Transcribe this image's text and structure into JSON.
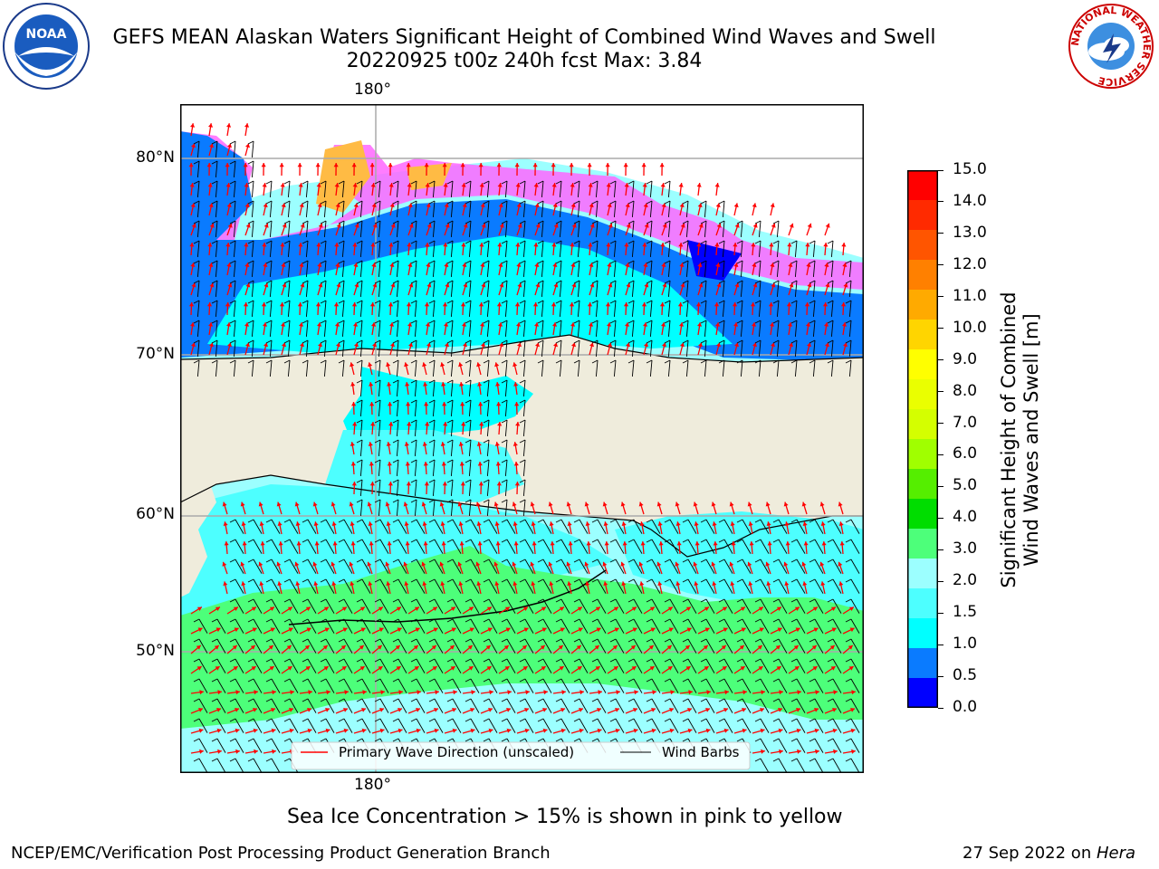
{
  "title": {
    "line1": "GEFS MEAN Alaskan Waters Significant Height of Combined Wind Waves and Swell",
    "line2": "20220925 t00z 240h fcst   Max: 3.84"
  },
  "map": {
    "lon_label_top": "180°",
    "lon_label_bottom": "180°",
    "lat_labels": [
      "80°N",
      "70°N",
      "60°N",
      "50°N"
    ],
    "colors": {
      "land": "#efecdc",
      "ocean_cyan": "#00ffff",
      "ocean_lightcyan": "#9cffff",
      "ocean_midcyan": "#4dffff",
      "ocean_green": "#4dff7a",
      "ocean_blue": "#0a7bff",
      "ocean_darkblue": "#0000ff",
      "ice_pink": "#ff66ff",
      "ice_orange": "#ffbb44",
      "ice_yellow": "#ffff00",
      "wave_arrow": "#ff0000",
      "wind_barb": "#000000"
    }
  },
  "legend": {
    "primary_wave": "Primary Wave Direction (unscaled)",
    "wind_barbs": "Wind Barbs"
  },
  "colorbar": {
    "title_line1": "Significant Height of Combined",
    "title_line2": "Wind Waves and Swell [m]",
    "ticks": [
      "15.0",
      "14.0",
      "13.0",
      "12.0",
      "11.0",
      "10.0",
      "9.0",
      "8.0",
      "7.0",
      "6.0",
      "5.0",
      "4.0",
      "3.0",
      "2.0",
      "1.5",
      "1.0",
      "0.5",
      "0.0"
    ],
    "colors_top_to_bottom": [
      "#ff0000",
      "#ff2a00",
      "#ff5500",
      "#ff8000",
      "#ffaa00",
      "#ffd500",
      "#ffff00",
      "#eaff00",
      "#d4ff00",
      "#a0ff00",
      "#55ee00",
      "#00dd00",
      "#4dff7a",
      "#9cffff",
      "#4dffff",
      "#00ffff",
      "#0a7bff",
      "#0000ff"
    ]
  },
  "note": "Sea Ice Concentration > 15% is shown in pink to yellow",
  "footer": {
    "left": "NCEP/EMC/Verification Post Processing Product Generation Branch",
    "right_date": "27 Sep 2022 on ",
    "right_host": "Hera"
  },
  "logos": {
    "noaa": "NOAA",
    "nws_ring": "NATIONAL WEATHER SERVICE"
  }
}
